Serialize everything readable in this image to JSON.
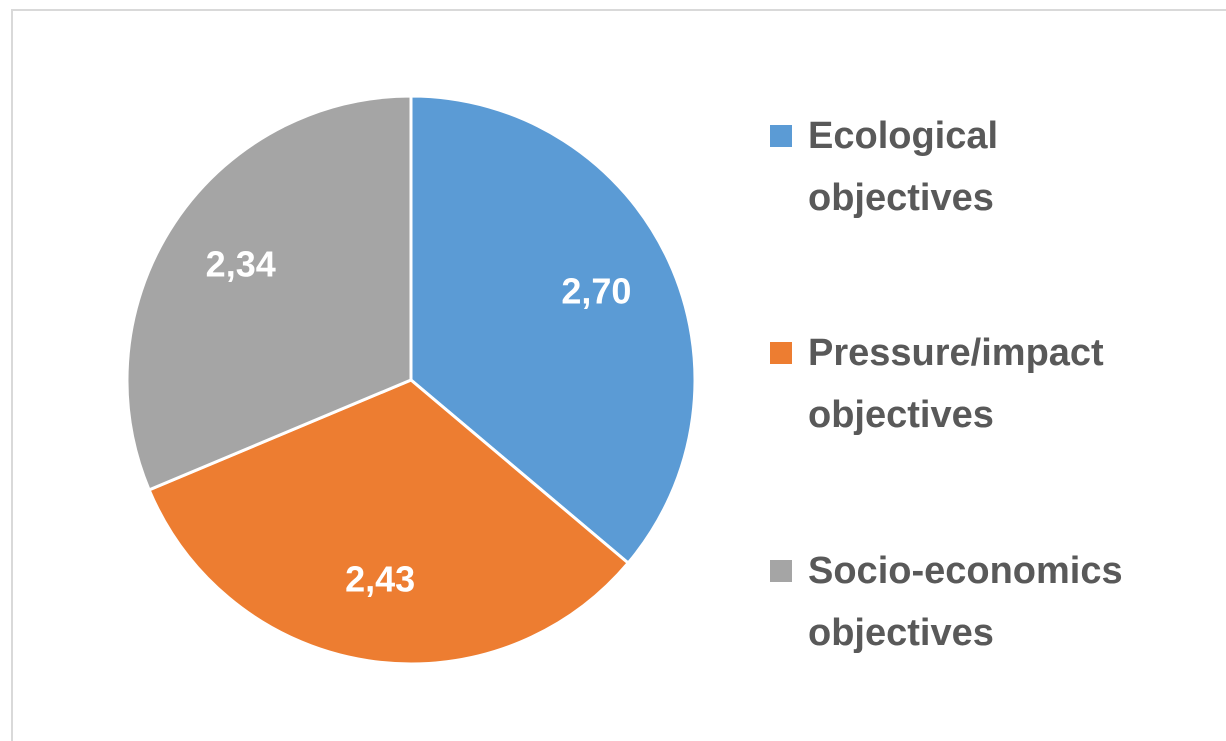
{
  "chart_data": {
    "type": "pie",
    "categories": [
      "Ecological objectives",
      "Pressure/impact objectives",
      "Socio-economics objectives"
    ],
    "values": [
      2.7,
      2.43,
      2.34
    ],
    "value_labels": [
      "2,70",
      "2,43",
      "2,34"
    ],
    "colors": [
      "#5b9bd5",
      "#ed7d31",
      "#a5a5a5"
    ],
    "legend": "right"
  }
}
